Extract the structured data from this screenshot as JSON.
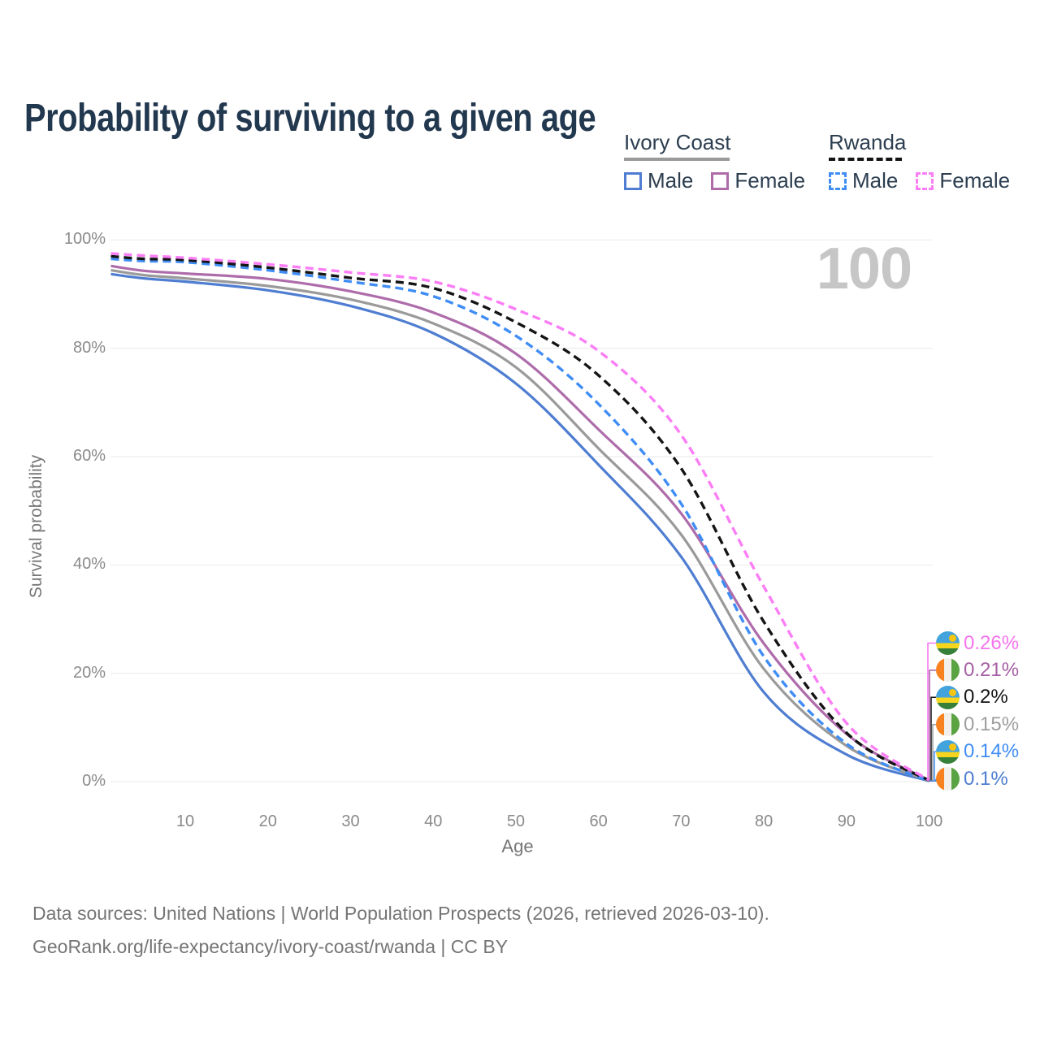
{
  "title": "Probability of surviving to a given age",
  "watermark": "100",
  "legend": {
    "ivory_coast": {
      "label": "Ivory Coast",
      "male_label": "Male",
      "female_label": "Female"
    },
    "rwanda": {
      "label": "Rwanda",
      "male_label": "Male",
      "female_label": "Female"
    }
  },
  "colors": {
    "ivory_coast_male": "#4e7dd1",
    "ivory_coast_all": "#9a9a9a",
    "ivory_coast_female": "#ae6cab",
    "rwanda_male": "#3f8df5",
    "rwanda_all": "#141414",
    "rwanda_female": "#fb7df5",
    "title_text": "#22384f",
    "axis_text": "#8a8a8a",
    "watermark_text": "#c6c6c6",
    "gridline": "#e9e9e9"
  },
  "chart_data": {
    "type": "line",
    "title": "Probability of surviving to a given age",
    "xlabel": "Age",
    "ylabel": "Survival probability",
    "xlim": [
      1,
      100
    ],
    "ylim": [
      0,
      100
    ],
    "grid": "horizontal-only",
    "legend_position": "top-right",
    "xticks": [
      10,
      20,
      30,
      40,
      50,
      60,
      70,
      80,
      90,
      100
    ],
    "yticks": [
      "0%",
      "20%",
      "40%",
      "60%",
      "80%",
      "100%"
    ],
    "x_ages": [
      1,
      5,
      10,
      20,
      30,
      40,
      50,
      60,
      70,
      80,
      90,
      100
    ],
    "unit": "percent",
    "series": [
      {
        "name": "Ivory Coast Male",
        "country": "Ivory Coast",
        "sex": "male",
        "line": "solid",
        "color": "#4e7dd1",
        "values": [
          93.7,
          92.9,
          92.3,
          90.7,
          87.8,
          82.8,
          73.5,
          58.5,
          41.5,
          16.5,
          5.0,
          0.1
        ],
        "end_label": "0.1%"
      },
      {
        "name": "Ivory Coast",
        "country": "Ivory Coast",
        "sex": "all",
        "line": "solid",
        "color": "#9a9a9a",
        "values": [
          94.4,
          93.5,
          92.9,
          91.5,
          89.0,
          84.6,
          76.5,
          61.5,
          45.6,
          20.8,
          6.6,
          0.15
        ],
        "end_label": "0.15%"
      },
      {
        "name": "Ivory Coast Female",
        "country": "Ivory Coast",
        "sex": "female",
        "line": "solid",
        "color": "#ae6cab",
        "values": [
          95.2,
          94.3,
          93.8,
          92.8,
          90.5,
          86.6,
          79.0,
          65.0,
          49.5,
          25.5,
          8.8,
          0.21
        ],
        "end_label": "0.21%"
      },
      {
        "name": "Rwanda Male",
        "country": "Rwanda",
        "sex": "male",
        "line": "dashed",
        "color": "#3f8df5",
        "values": [
          96.5,
          96.1,
          95.9,
          94.4,
          92.3,
          89.6,
          82.3,
          69.7,
          51.3,
          23.1,
          7.0,
          0.14
        ],
        "end_label": "0.14%"
      },
      {
        "name": "Rwanda",
        "country": "Rwanda",
        "sex": "all",
        "line": "dashed",
        "color": "#141414",
        "values": [
          97.0,
          96.5,
          96.3,
          94.9,
          93.0,
          91.1,
          84.8,
          75.0,
          57.8,
          29.5,
          9.0,
          0.2
        ],
        "end_label": "0.2%"
      },
      {
        "name": "Rwanda Female",
        "country": "Rwanda",
        "sex": "female",
        "line": "dashed",
        "color": "#fb7df5",
        "values": [
          97.5,
          97.1,
          96.7,
          95.5,
          94.0,
          92.3,
          87.2,
          79.5,
          64.0,
          36.0,
          10.8,
          0.26
        ],
        "end_label": "0.26%"
      }
    ]
  },
  "end_labels": [
    {
      "flag": "rwanda",
      "value": "0.26%",
      "series": "Rwanda Female",
      "color": "#f673ef"
    },
    {
      "flag": "ivory-coast",
      "value": "0.21%",
      "series": "Ivory Coast Female",
      "color": "#a55fa3"
    },
    {
      "flag": "rwanda",
      "value": "0.2%",
      "series": "Rwanda",
      "color": "#141414"
    },
    {
      "flag": "ivory-coast",
      "value": "0.15%",
      "series": "Ivory Coast",
      "color": "#9e9e9e"
    },
    {
      "flag": "rwanda",
      "value": "0.14%",
      "series": "Rwanda Male",
      "color": "#3f8df5"
    },
    {
      "flag": "ivory-coast",
      "value": "0.1%",
      "series": "Ivory Coast Male",
      "color": "#4e7dd1"
    }
  ],
  "footer": {
    "line1": "Data sources: United Nations | World Population Prospects (2026, retrieved 2026-03-10).",
    "line2": "GeoRank.org/life-expectancy/ivory-coast/rwanda | CC BY"
  }
}
